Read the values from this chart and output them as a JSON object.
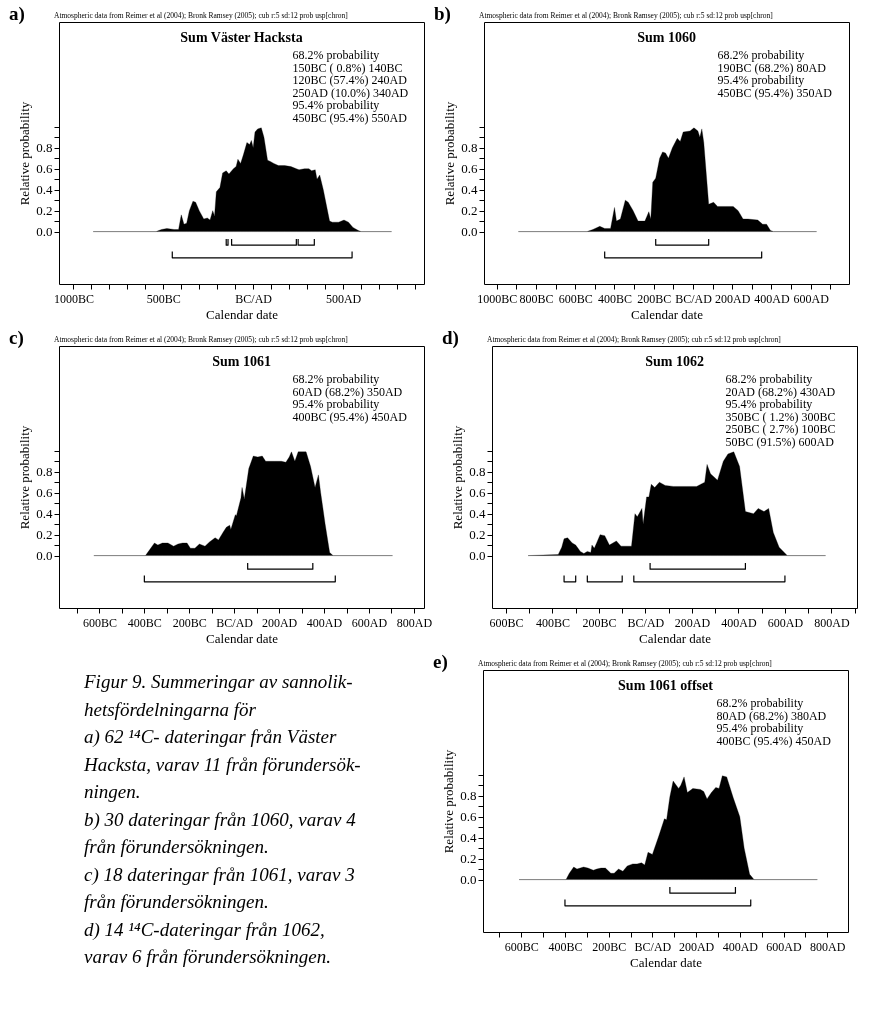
{
  "chart_data": [
    {
      "type": "area",
      "title": "Sum Väster Hacksta",
      "subtitle": "Atmospheric data from Reimer et al (2004); Bronk Ramsey (2005); cub r:5 sd:12 prob usp[chron]",
      "xlabel": "Calendar date",
      "ylabel": "Relative probability",
      "annotations": [
        "a)",
        "68.2% probability",
        "150BC ( 0.8%) 140BC",
        "120BC (57.4%) 240AD",
        "250AD (10.0%) 340AD",
        "95.4% probability",
        "450BC (95.4%) 550AD"
      ],
      "xlim": [
        -1080,
        950
      ],
      "ylim": [
        -0.5,
        2.0
      ],
      "xticks": [
        {
          "value": -1000,
          "label": "1000BC"
        },
        {
          "value": -900,
          "label": null
        },
        {
          "value": -800,
          "label": null
        },
        {
          "value": -700,
          "label": null
        },
        {
          "value": -600,
          "label": null
        },
        {
          "value": -500,
          "label": "500BC"
        },
        {
          "value": -400,
          "label": null
        },
        {
          "value": -300,
          "label": null
        },
        {
          "value": -200,
          "label": null
        },
        {
          "value": -100,
          "label": null
        },
        {
          "value": 0,
          "label": "BC/AD"
        },
        {
          "value": 100,
          "label": null
        },
        {
          "value": 200,
          "label": null
        },
        {
          "value": 300,
          "label": null
        },
        {
          "value": 400,
          "label": null
        },
        {
          "value": 500,
          "label": "500AD"
        },
        {
          "value": 600,
          "label": null
        },
        {
          "value": 700,
          "label": null
        },
        {
          "value": 800,
          "label": null
        },
        {
          "value": 900,
          "label": null
        }
      ],
      "yticks": [
        {
          "value": 0,
          "label": "0.0"
        },
        {
          "value": 0.1,
          "label": null
        },
        0.2,
        {
          "value": 0.3,
          "label": null
        },
        0.4,
        {
          "value": 0.5,
          "label": null
        },
        0.6,
        {
          "value": 0.7,
          "label": null
        },
        0.8,
        {
          "value": 0.9,
          "label": null
        },
        {
          "value": 1,
          "label": null
        }
      ],
      "series": [
        {
          "type": "area",
          "color": "#000000",
          "x": [
            -890,
            -540,
            -510,
            -480,
            -440,
            -415,
            -400,
            -385,
            -370,
            -355,
            -335,
            -320,
            -300,
            -275,
            -255,
            -240,
            -225,
            -215,
            -205,
            -185,
            -170,
            -150,
            -135,
            -110,
            -95,
            -85,
            -70,
            -55,
            -35,
            -20,
            -10,
            0,
            10,
            25,
            45,
            60,
            80,
            95,
            115,
            140,
            175,
            210,
            240,
            255,
            285,
            310,
            325,
            345,
            355,
            370,
            390,
            425,
            440,
            475,
            505,
            530,
            555,
            585,
            600,
            770
          ],
          "values": [
            0,
            0,
            0.02,
            0.03,
            0.02,
            0.02,
            0.16,
            0.07,
            0.08,
            0.2,
            0.29,
            0.28,
            0.2,
            0.12,
            0.13,
            0.11,
            0.2,
            0.15,
            0.38,
            0.42,
            0.56,
            0.58,
            0.55,
            0.6,
            0.62,
            0.69,
            0.65,
            0.73,
            0.85,
            0.83,
            0.87,
            0.8,
            0.95,
            0.98,
            0.99,
            0.9,
            0.68,
            0.67,
            0.65,
            0.63,
            0.63,
            0.62,
            0.6,
            0.59,
            0.6,
            0.6,
            0.58,
            0.59,
            0.5,
            0.54,
            0.4,
            0.1,
            0.09,
            0.09,
            0.11,
            0.09,
            0.04,
            0.01,
            0,
            0
          ]
        },
        {
          "type": "line",
          "color": "#000000",
          "x": [
            -150,
            -150,
            -140,
            -140
          ],
          "values": [
            -0.07,
            -0.13,
            -0.13,
            -0.07
          ]
        },
        {
          "type": "line",
          "color": "#000000",
          "x": [
            -120,
            -120,
            240,
            240
          ],
          "values": [
            -0.07,
            -0.13,
            -0.13,
            -0.07
          ]
        },
        {
          "type": "line",
          "color": "#000000",
          "x": [
            250,
            250,
            340,
            340
          ],
          "values": [
            -0.07,
            -0.13,
            -0.13,
            -0.07
          ]
        },
        {
          "type": "line",
          "color": "#000000",
          "x": [
            -450,
            -450,
            550,
            550
          ],
          "values": [
            -0.19,
            -0.25,
            -0.25,
            -0.19
          ]
        }
      ]
    },
    {
      "type": "area",
      "title": "Sum 1060",
      "subtitle": "Atmospheric data from Reimer et al (2004); Bronk Ramsey (2005); cub r:5 sd:12 prob usp[chron]",
      "xlabel": "Calendar date",
      "ylabel": "Relative probability",
      "annotations": [
        "b)",
        "68.2% probability",
        "190BC (68.2%) 80AD",
        "95.4% probability",
        "450BC (95.4%) 350AD"
      ],
      "xlim": [
        -1065,
        795
      ],
      "ylim": [
        -0.5,
        2.0
      ],
      "xticks": [
        {
          "value": -1000,
          "label": "1000BC"
        },
        {
          "value": -900,
          "label": null
        },
        {
          "value": -800,
          "label": "800BC"
        },
        {
          "value": -700,
          "label": null
        },
        {
          "value": -600,
          "label": "600BC"
        },
        {
          "value": -500,
          "label": null
        },
        {
          "value": -400,
          "label": "400BC"
        },
        {
          "value": -300,
          "label": null
        },
        {
          "value": -200,
          "label": "200BC"
        },
        {
          "value": -100,
          "label": null
        },
        {
          "value": 0,
          "label": "BC/AD"
        },
        {
          "value": 100,
          "label": null
        },
        {
          "value": 200,
          "label": "200AD"
        },
        {
          "value": 300,
          "label": null
        },
        {
          "value": 400,
          "label": "400AD"
        },
        {
          "value": 500,
          "label": null
        },
        {
          "value": 600,
          "label": "600AD"
        },
        {
          "value": 700,
          "label": null
        }
      ],
      "yticks": [
        {
          "value": 0,
          "label": "0.0"
        },
        {
          "value": 0.1,
          "label": null
        },
        0.2,
        {
          "value": 0.3,
          "label": null
        },
        0.4,
        {
          "value": 0.5,
          "label": null
        },
        0.6,
        {
          "value": 0.7,
          "label": null
        },
        0.8,
        {
          "value": 0.9,
          "label": null
        },
        {
          "value": 1,
          "label": null
        }
      ],
      "series": [
        {
          "type": "area",
          "color": "#000000",
          "x": [
            -890,
            -540,
            -510,
            -475,
            -450,
            -420,
            -400,
            -390,
            -370,
            -345,
            -330,
            -305,
            -280,
            -260,
            -245,
            -225,
            -215,
            -205,
            -190,
            -170,
            -155,
            -140,
            -125,
            -105,
            -80,
            -65,
            -50,
            -15,
            5,
            25,
            35,
            45,
            55,
            80,
            105,
            125,
            165,
            205,
            230,
            255,
            280,
            330,
            355,
            375,
            395,
            410,
            630
          ],
          "values": [
            0,
            0,
            0.02,
            0.05,
            0.03,
            0.03,
            0.23,
            0.1,
            0.12,
            0.3,
            0.28,
            0.2,
            0.1,
            0.1,
            0.1,
            0.19,
            0.12,
            0.47,
            0.51,
            0.7,
            0.76,
            0.75,
            0.7,
            0.8,
            0.89,
            0.86,
            0.95,
            0.96,
            0.99,
            0.96,
            0.9,
            0.98,
            0.85,
            0.26,
            0.28,
            0.24,
            0.24,
            0.24,
            0.2,
            0.12,
            0.12,
            0.11,
            0.07,
            0.07,
            0.01,
            0,
            0
          ]
        },
        {
          "type": "line",
          "color": "#000000",
          "x": [
            -190,
            -190,
            80,
            80
          ],
          "values": [
            -0.07,
            -0.13,
            -0.13,
            -0.07
          ]
        },
        {
          "type": "line",
          "color": "#000000",
          "x": [
            -450,
            -450,
            350,
            350
          ],
          "values": [
            -0.19,
            -0.25,
            -0.25,
            -0.19
          ]
        }
      ]
    },
    {
      "type": "area",
      "title": "Sum 1061",
      "subtitle": "Atmospheric data from Reimer et al (2004); Bronk Ramsey (2005); cub r:5 sd:12 prob usp[chron]",
      "xlabel": "Calendar date",
      "ylabel": "Relative probability",
      "annotations": [
        "c)",
        "68.2% probability",
        "60AD (68.2%) 350AD",
        "95.4% probability",
        "400BC (95.4%) 450AD"
      ],
      "xlim": [
        -780,
        845
      ],
      "ylim": [
        -0.5,
        2.0
      ],
      "xticks": [
        {
          "value": -700,
          "label": null
        },
        {
          "value": -600,
          "label": "600BC"
        },
        {
          "value": -500,
          "label": null
        },
        {
          "value": -400,
          "label": "400BC"
        },
        {
          "value": -300,
          "label": null
        },
        {
          "value": -200,
          "label": "200BC"
        },
        {
          "value": -100,
          "label": null
        },
        {
          "value": 0,
          "label": "BC/AD"
        },
        {
          "value": 100,
          "label": null
        },
        {
          "value": 200,
          "label": "200AD"
        },
        {
          "value": 300,
          "label": null
        },
        {
          "value": 400,
          "label": "400AD"
        },
        {
          "value": 500,
          "label": null
        },
        {
          "value": 600,
          "label": "600AD"
        },
        {
          "value": 700,
          "label": null
        },
        {
          "value": 800,
          "label": "800AD"
        }
      ],
      "yticks": [
        {
          "value": 0,
          "label": "0.0"
        },
        {
          "value": 0.1,
          "label": null
        },
        0.2,
        {
          "value": 0.3,
          "label": null
        },
        0.4,
        {
          "value": 0.5,
          "label": null
        },
        0.6,
        {
          "value": 0.7,
          "label": null
        },
        0.8,
        {
          "value": 0.9,
          "label": null
        },
        {
          "value": 1,
          "label": null
        }
      ],
      "series": [
        {
          "type": "area",
          "color": "#000000",
          "x": [
            -625,
            -395,
            -375,
            -355,
            -340,
            -320,
            -295,
            -270,
            -250,
            -230,
            -210,
            -195,
            -175,
            -155,
            -130,
            -110,
            -85,
            -70,
            -50,
            -35,
            -20,
            -15,
            5,
            10,
            30,
            35,
            45,
            65,
            85,
            105,
            125,
            140,
            180,
            210,
            230,
            245,
            255,
            270,
            285,
            320,
            340,
            360,
            375,
            385,
            405,
            425,
            440,
            705
          ],
          "values": [
            0,
            0,
            0.06,
            0.12,
            0.1,
            0.12,
            0.12,
            0.09,
            0.11,
            0.12,
            0.12,
            0.07,
            0.07,
            0.11,
            0.09,
            0.13,
            0.17,
            0.15,
            0.22,
            0.27,
            0.29,
            0.25,
            0.39,
            0.38,
            0.55,
            0.65,
            0.54,
            0.83,
            0.95,
            0.94,
            0.95,
            0.9,
            0.9,
            0.9,
            0.89,
            0.94,
            0.99,
            0.9,
            0.99,
            0.99,
            0.85,
            0.65,
            0.77,
            0.6,
            0.3,
            0.03,
            0,
            0
          ]
        },
        {
          "type": "line",
          "color": "#000000",
          "x": [
            60,
            60,
            350,
            350
          ],
          "values": [
            -0.07,
            -0.13,
            -0.13,
            -0.07
          ]
        },
        {
          "type": "line",
          "color": "#000000",
          "x": [
            -400,
            -400,
            450,
            450
          ],
          "values": [
            -0.19,
            -0.25,
            -0.25,
            -0.19
          ]
        }
      ]
    },
    {
      "type": "area",
      "title": "Sum 1062",
      "subtitle": "Atmospheric data from Reimer et al (2004); Bronk Ramsey (2005); cub r:5 sd:12 prob usp[chron]",
      "xlabel": "Calendar date",
      "ylabel": "Relative probability",
      "annotations": [
        "d)",
        "68.2% probability",
        "20AD (68.2%) 430AD",
        "95.4% probability",
        "350BC ( 1.2%) 300BC",
        "250BC ( 2.7%) 100BC",
        "50BC (91.5%) 600AD"
      ],
      "xlim": [
        -660,
        910
      ],
      "ylim": [
        -0.5,
        2.0
      ],
      "xticks": [
        {
          "value": -600,
          "label": "600BC"
        },
        {
          "value": -500,
          "label": null
        },
        {
          "value": -400,
          "label": "400BC"
        },
        {
          "value": -300,
          "label": null
        },
        {
          "value": -200,
          "label": "200BC"
        },
        {
          "value": -100,
          "label": null
        },
        {
          "value": 0,
          "label": "BC/AD"
        },
        {
          "value": 100,
          "label": null
        },
        {
          "value": 200,
          "label": "200AD"
        },
        {
          "value": 300,
          "label": null
        },
        {
          "value": 400,
          "label": "400AD"
        },
        {
          "value": 500,
          "label": null
        },
        {
          "value": 600,
          "label": "600AD"
        },
        {
          "value": 700,
          "label": null
        },
        {
          "value": 800,
          "label": "800AD"
        },
        {
          "value": 900,
          "label": null
        }
      ],
      "yticks": [
        {
          "value": 0,
          "label": "0.0"
        },
        {
          "value": 0.1,
          "label": null
        },
        0.2,
        {
          "value": 0.3,
          "label": null
        },
        0.4,
        {
          "value": 0.5,
          "label": null
        },
        0.6,
        {
          "value": 0.7,
          "label": null
        },
        0.8,
        {
          "value": 0.9,
          "label": null
        },
        {
          "value": 1,
          "label": null
        }
      ],
      "series": [
        {
          "type": "area",
          "color": "#000000",
          "x": [
            -505,
            -375,
            -360,
            -350,
            -335,
            -315,
            -300,
            -280,
            -265,
            -250,
            -235,
            -230,
            -220,
            -210,
            -195,
            -175,
            -155,
            -125,
            -105,
            -60,
            -45,
            -35,
            -15,
            -10,
            5,
            15,
            25,
            40,
            60,
            85,
            120,
            175,
            220,
            255,
            265,
            280,
            310,
            335,
            355,
            380,
            405,
            430,
            465,
            485,
            510,
            530,
            550,
            575,
            610,
            775
          ],
          "values": [
            0,
            0.01,
            0.08,
            0.16,
            0.17,
            0.12,
            0.1,
            0.04,
            0.02,
            0.04,
            0.03,
            0.1,
            0.07,
            0.12,
            0.2,
            0.19,
            0.1,
            0.14,
            0.09,
            0.09,
            0.4,
            0.37,
            0.45,
            0.3,
            0.56,
            0.56,
            0.68,
            0.65,
            0.7,
            0.67,
            0.66,
            0.66,
            0.66,
            0.7,
            0.87,
            0.78,
            0.72,
            0.9,
            0.97,
            0.99,
            0.85,
            0.42,
            0.4,
            0.45,
            0.42,
            0.45,
            0.22,
            0.08,
            0,
            0
          ]
        },
        {
          "type": "line",
          "color": "#000000",
          "x": [
            20,
            20,
            430,
            430
          ],
          "values": [
            -0.07,
            -0.13,
            -0.13,
            -0.07
          ]
        },
        {
          "type": "line",
          "color": "#000000",
          "x": [
            -350,
            -350,
            -300,
            -300
          ],
          "values": [
            -0.19,
            -0.25,
            -0.25,
            -0.19
          ]
        },
        {
          "type": "line",
          "color": "#000000",
          "x": [
            -250,
            -250,
            -100,
            -100
          ],
          "values": [
            -0.19,
            -0.25,
            -0.25,
            -0.19
          ]
        },
        {
          "type": "line",
          "color": "#000000",
          "x": [
            -50,
            -50,
            600,
            600
          ],
          "values": [
            -0.19,
            -0.25,
            -0.25,
            -0.19
          ]
        }
      ]
    },
    {
      "type": "other",
      "annotations": [
        "Figur 9. Summeringar av sannolik-",
        "hetsfördelningarna för",
        "a) 62 ¹⁴C- dateringar från Väster",
        "Hacksta, varav 11 från förundersök-",
        "ningen.",
        "b) 30 dateringar från 1060, varav 4",
        "från förundersökningen.",
        "c) 18 dateringar från 1061, varav 3",
        "från förundersökningen.",
        "d) 14 ¹⁴C-dateringar från 1062,",
        "varav 6 från förundersökningen."
      ]
    },
    {
      "type": "area",
      "title": "Sum 1061 offset",
      "subtitle": "Atmospheric data from Reimer et al (2004); Bronk Ramsey (2005); cub r:5 sd:12 prob usp[chron]",
      "xlabel": "Calendar date",
      "ylabel": "Relative probability",
      "annotations": [
        "e)",
        "68.2% probability",
        "80AD (68.2%) 380AD",
        "95.4% probability",
        "400BC (95.4%) 450AD"
      ],
      "xlim": [
        -775,
        895
      ],
      "ylim": [
        -0.5,
        2.0
      ],
      "xticks": [
        {
          "value": -700,
          "label": null
        },
        {
          "value": -600,
          "label": "600BC"
        },
        {
          "value": -500,
          "label": null
        },
        {
          "value": -400,
          "label": "400BC"
        },
        {
          "value": -300,
          "label": null
        },
        {
          "value": -200,
          "label": "200BC"
        },
        {
          "value": -100,
          "label": null
        },
        {
          "value": 0,
          "label": "BC/AD"
        },
        {
          "value": 100,
          "label": null
        },
        {
          "value": 200,
          "label": "200AD"
        },
        {
          "value": 300,
          "label": null
        },
        {
          "value": 400,
          "label": "400AD"
        },
        {
          "value": 500,
          "label": null
        },
        {
          "value": 600,
          "label": "600AD"
        },
        {
          "value": 700,
          "label": null
        },
        {
          "value": 800,
          "label": "800AD"
        }
      ],
      "yticks": [
        {
          "value": 0,
          "label": "0.0"
        },
        {
          "value": 0.1,
          "label": null
        },
        0.2,
        {
          "value": 0.3,
          "label": null
        },
        0.4,
        {
          "value": 0.5,
          "label": null
        },
        0.6,
        {
          "value": 0.7,
          "label": null
        },
        0.8,
        {
          "value": 0.9,
          "label": null
        },
        {
          "value": 1,
          "label": null
        }
      ],
      "series": [
        {
          "type": "area",
          "color": "#000000",
          "x": [
            -610,
            -395,
            -380,
            -360,
            -345,
            -315,
            -295,
            -270,
            -255,
            -235,
            -215,
            -190,
            -175,
            -155,
            -135,
            -115,
            -90,
            -70,
            -50,
            -35,
            -20,
            0,
            15,
            30,
            55,
            65,
            80,
            95,
            120,
            130,
            145,
            160,
            185,
            220,
            235,
            250,
            270,
            290,
            305,
            320,
            340,
            370,
            400,
            420,
            445,
            465,
            755
          ],
          "values": [
            0,
            0,
            0.06,
            0.12,
            0.1,
            0.12,
            0.11,
            0.09,
            0.1,
            0.11,
            0.11,
            0.06,
            0.06,
            0.1,
            0.08,
            0.13,
            0.15,
            0.15,
            0.16,
            0.14,
            0.26,
            0.24,
            0.33,
            0.42,
            0.58,
            0.57,
            0.79,
            0.94,
            0.87,
            0.9,
            0.98,
            0.83,
            0.87,
            0.86,
            0.84,
            0.77,
            0.83,
            0.88,
            0.87,
            0.99,
            0.98,
            0.78,
            0.6,
            0.3,
            0.05,
            0,
            0
          ]
        },
        {
          "type": "line",
          "color": "#000000",
          "x": [
            80,
            80,
            380,
            380
          ],
          "values": [
            -0.07,
            -0.13,
            -0.13,
            -0.07
          ]
        },
        {
          "type": "line",
          "color": "#000000",
          "x": [
            -400,
            -400,
            450,
            450
          ],
          "values": [
            -0.19,
            -0.25,
            -0.25,
            -0.19
          ]
        }
      ]
    }
  ]
}
